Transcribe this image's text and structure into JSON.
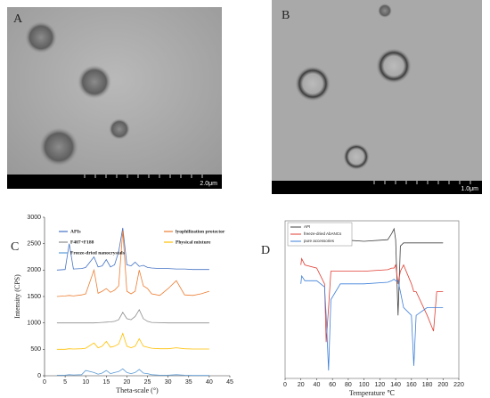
{
  "images": [
    {
      "label": "A",
      "scale_bar": "2.0μm"
    },
    {
      "label": "B",
      "scale_bar": "1.0μm"
    }
  ],
  "chart_data": [
    {
      "type": "line",
      "panel_label": "C",
      "x_label": "Theta-scale (°)",
      "y_label": "Intensity (CPS)",
      "legend": "upper center",
      "xlim": [
        0,
        45
      ],
      "xticks": [
        0,
        5,
        10,
        15,
        20,
        25,
        30,
        35,
        40,
        45
      ],
      "ylim": [
        0,
        3000
      ],
      "yticks": [
        0,
        500,
        1000,
        1500,
        2000,
        2500,
        3000
      ],
      "x": [
        3,
        5,
        6,
        7,
        9,
        10,
        12,
        13,
        14,
        15,
        16,
        17,
        18,
        19,
        20,
        21,
        22,
        23,
        24,
        25,
        26,
        28,
        30,
        32,
        34,
        36,
        38,
        40
      ],
      "series": [
        {
          "name": "APIs",
          "color": "#4472c4",
          "values": [
            2000,
            2010,
            2500,
            2020,
            2030,
            2050,
            2250,
            2060,
            2080,
            2200,
            2060,
            2100,
            2350,
            2800,
            2100,
            2080,
            2150,
            2070,
            2090,
            2050,
            2040,
            2030,
            2030,
            2020,
            2020,
            2010,
            2010,
            2010
          ]
        },
        {
          "name": "lyophilization protector",
          "color": "#ed7d31",
          "values": [
            1500,
            1510,
            1520,
            1510,
            1530,
            1550,
            2000,
            1560,
            1600,
            1650,
            1580,
            1620,
            1700,
            2750,
            1600,
            1550,
            1600,
            2000,
            1700,
            1650,
            1550,
            1520,
            1650,
            1800,
            1530,
            1520,
            1550,
            1600
          ]
        },
        {
          "name": "F407+F188",
          "color": "#8c8c8c",
          "values": [
            1000,
            1000,
            1000,
            1000,
            1000,
            1000,
            1000,
            1005,
            1010,
            1015,
            1020,
            1030,
            1060,
            1200,
            1080,
            1060,
            1120,
            1250,
            1080,
            1030,
            1010,
            1005,
            1000,
            1000,
            1000,
            1000,
            1000,
            1000
          ]
        },
        {
          "name": "Physical mixture",
          "color": "#ffc000",
          "values": [
            500,
            500,
            510,
            505,
            510,
            520,
            620,
            530,
            560,
            650,
            540,
            560,
            600,
            800,
            560,
            530,
            560,
            700,
            560,
            540,
            520,
            510,
            510,
            530,
            510,
            505,
            505,
            505
          ]
        },
        {
          "name": "Freeze-dried nanocrystals",
          "color": "#5b9bd5",
          "values": [
            10,
            10,
            20,
            15,
            20,
            100,
            60,
            30,
            50,
            100,
            40,
            60,
            80,
            130,
            60,
            40,
            60,
            120,
            50,
            40,
            20,
            10,
            10,
            20,
            10,
            5,
            5,
            5
          ]
        }
      ]
    },
    {
      "type": "line",
      "panel_label": "D",
      "x_label": "Temperature ℃",
      "legend": "upper left",
      "xlim": [
        0,
        220
      ],
      "xticks": [
        0,
        20,
        40,
        60,
        80,
        100,
        120,
        140,
        160,
        180,
        200,
        220
      ],
      "ylim": [
        0,
        100
      ],
      "x": [
        20,
        21,
        25,
        40,
        50,
        52,
        55,
        58,
        70,
        100,
        130,
        135,
        138,
        140,
        143,
        146,
        150,
        160,
        163,
        166,
        180,
        188,
        192,
        200
      ],
      "series": [
        {
          "name": "API",
          "color": "#404040",
          "values": [
            89,
            93,
            89,
            88,
            88,
            88,
            88,
            88,
            88,
            87,
            88,
            92,
            95,
            88,
            40,
            84,
            86,
            86,
            86,
            86,
            86,
            86,
            86,
            86
          ]
        },
        {
          "name": "freeze-dried AbANCs",
          "color": "#e03c31",
          "values": [
            72,
            76,
            72,
            70,
            60,
            23,
            45,
            68,
            68,
            68,
            69,
            70,
            70,
            72,
            60,
            68,
            72,
            60,
            55,
            55,
            40,
            30,
            55,
            55
          ]
        },
        {
          "name": "pure accessories",
          "color": "#3d7fd9",
          "values": [
            60,
            65,
            62,
            62,
            58,
            40,
            5,
            50,
            60,
            60,
            61,
            62,
            63,
            62,
            62,
            55,
            45,
            40,
            8,
            40,
            45,
            45,
            45,
            45
          ]
        }
      ]
    }
  ]
}
